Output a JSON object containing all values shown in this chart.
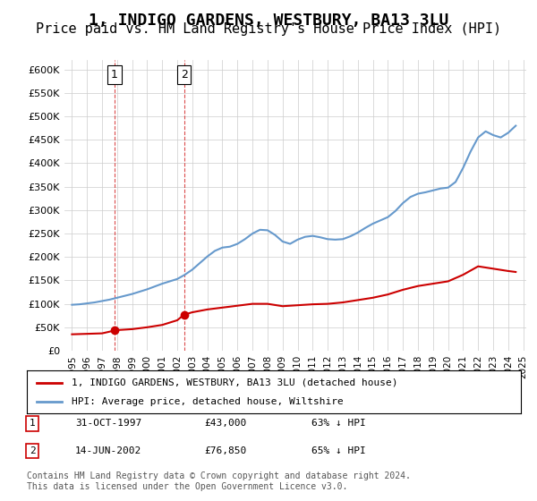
{
  "title": "1, INDIGO GARDENS, WESTBURY, BA13 3LU",
  "subtitle": "Price paid vs. HM Land Registry's House Price Index (HPI)",
  "title_fontsize": 13,
  "subtitle_fontsize": 11,
  "red_line_color": "#cc0000",
  "blue_line_color": "#6699cc",
  "background_color": "#ffffff",
  "grid_color": "#cccccc",
  "ylim": [
    0,
    620000
  ],
  "yticks": [
    0,
    50000,
    100000,
    150000,
    200000,
    250000,
    300000,
    350000,
    400000,
    450000,
    500000,
    550000,
    600000
  ],
  "ytick_labels": [
    "£0",
    "£50K",
    "£100K",
    "£150K",
    "£200K",
    "£250K",
    "£300K",
    "£350K",
    "£400K",
    "£450K",
    "£500K",
    "£550K",
    "£600K"
  ],
  "legend_red_label": "1, INDIGO GARDENS, WESTBURY, BA13 3LU (detached house)",
  "legend_blue_label": "HPI: Average price, detached house, Wiltshire",
  "footer_text": "Contains HM Land Registry data © Crown copyright and database right 2024.\nThis data is licensed under the Open Government Licence v3.0.",
  "purchases": [
    {
      "label": "1",
      "date_num": 1997.83,
      "price": 43000
    },
    {
      "label": "2",
      "date_num": 2002.45,
      "price": 76850
    }
  ],
  "purchase_table": [
    {
      "num": "1",
      "date": "31-OCT-1997",
      "price": "£43,000",
      "pct": "63% ↓ HPI"
    },
    {
      "num": "2",
      "date": "14-JUN-2002",
      "price": "£76,850",
      "pct": "65% ↓ HPI"
    }
  ],
  "hpi_x": [
    1995,
    1995.5,
    1996,
    1996.5,
    1997,
    1997.5,
    1998,
    1998.5,
    1999,
    1999.5,
    2000,
    2000.5,
    2001,
    2001.5,
    2002,
    2002.5,
    2003,
    2003.5,
    2004,
    2004.5,
    2005,
    2005.5,
    2006,
    2006.5,
    2007,
    2007.5,
    2008,
    2008.5,
    2009,
    2009.5,
    2010,
    2010.5,
    2011,
    2011.5,
    2012,
    2012.5,
    2013,
    2013.5,
    2014,
    2014.5,
    2015,
    2015.5,
    2016,
    2016.5,
    2017,
    2017.5,
    2018,
    2018.5,
    2019,
    2019.5,
    2020,
    2020.5,
    2021,
    2021.5,
    2022,
    2022.5,
    2023,
    2023.5,
    2024,
    2024.5
  ],
  "hpi_y": [
    98000,
    99000,
    101000,
    103000,
    106000,
    109000,
    113000,
    117000,
    121000,
    126000,
    131000,
    137000,
    143000,
    148000,
    153000,
    162000,
    173000,
    187000,
    201000,
    213000,
    220000,
    222000,
    228000,
    238000,
    250000,
    258000,
    257000,
    247000,
    233000,
    228000,
    237000,
    243000,
    245000,
    242000,
    238000,
    237000,
    238000,
    244000,
    252000,
    262000,
    271000,
    278000,
    285000,
    298000,
    315000,
    328000,
    335000,
    338000,
    342000,
    346000,
    348000,
    360000,
    390000,
    425000,
    455000,
    468000,
    460000,
    455000,
    465000,
    480000
  ],
  "red_x": [
    1995,
    1996,
    1997,
    1997.83,
    1998,
    1999,
    2000,
    2001,
    2002,
    2002.45,
    2003,
    2004,
    2005,
    2006,
    2007,
    2008,
    2009,
    2010,
    2011,
    2012,
    2013,
    2014,
    2015,
    2016,
    2017,
    2018,
    2019,
    2020,
    2021,
    2022,
    2023,
    2024,
    2024.5
  ],
  "red_y": [
    35000,
    36000,
    37000,
    43000,
    44000,
    46000,
    50000,
    55000,
    65000,
    76850,
    82000,
    88000,
    92000,
    96000,
    100000,
    100000,
    95000,
    97000,
    99000,
    100000,
    103000,
    108000,
    113000,
    120000,
    130000,
    138000,
    143000,
    148000,
    162000,
    180000,
    175000,
    170000,
    168000
  ]
}
